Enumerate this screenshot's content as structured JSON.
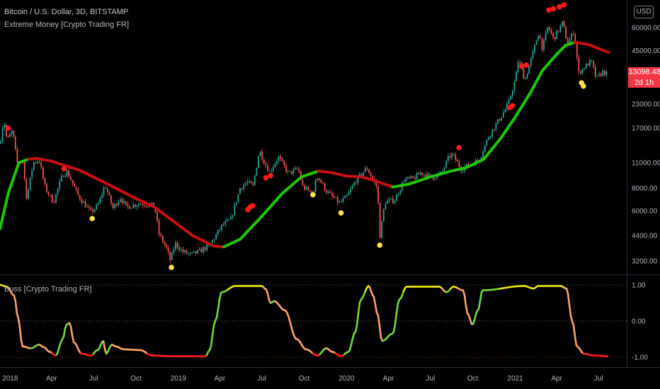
{
  "header": {
    "symbol_line": "Bitcoin / U.S. Dollar, 3D, BITSTAMP",
    "indicator_name": "Extreme Money [Crypto Trading FR]",
    "oscillator_name": "Buss [Crypto Trading FR]",
    "currency_badge": "USD"
  },
  "price_tag": {
    "price": "33098.48",
    "countdown": "2d 1h"
  },
  "colors": {
    "background": "#000000",
    "trend_up": "#1ec800",
    "trend_down": "#c80f14",
    "candle_up": "#26a69a",
    "candle_down": "#ef5350",
    "dot_top": "#ff1a1a",
    "dot_bottom": "#ffe14d",
    "osc_high": "#e6e600",
    "osc_mid_up": "#6fd83a",
    "osc_mid_down": "#ffa066",
    "osc_low": "#ff1a1a",
    "price_tag": "#f23645"
  },
  "chart_data": [
    {
      "type": "line",
      "title": "Bitcoin / U.S. Dollar, 3D, BITSTAMP",
      "scale": "log",
      "y_ticks": [
        "60000.00",
        "45000.00",
        "33000.00",
        "23000.00",
        "17000.00",
        "11000.00",
        "8000.00",
        "6000.00",
        "4400.00",
        "3200.00"
      ],
      "y_tick_values": [
        60000,
        45000,
        33000,
        23000,
        17000,
        11000,
        8000,
        6000,
        4400,
        3200
      ],
      "x_ticks": [
        "2018",
        "Apr",
        "Jul",
        "Oct",
        "2019",
        "Apr",
        "Jul",
        "Oct",
        "2020",
        "Apr",
        "Jul",
        "Oct",
        "2021",
        "Apr",
        "Jul"
      ],
      "x_range": [
        "2017-12-10",
        "2021-07-22"
      ],
      "ylim": [
        2700,
        85000
      ],
      "price_series": [
        [
          "2017-12-10",
          14000
        ],
        [
          "2017-12-18",
          19000
        ],
        [
          "2017-12-25",
          14500
        ],
        [
          "2018-01-06",
          16500
        ],
        [
          "2018-01-16",
          11000
        ],
        [
          "2018-01-28",
          11500
        ],
        [
          "2018-02-06",
          7000
        ],
        [
          "2018-02-20",
          11000
        ],
        [
          "2018-03-05",
          11400
        ],
        [
          "2018-03-18",
          8000
        ],
        [
          "2018-04-05",
          6700
        ],
        [
          "2018-04-25",
          9500
        ],
        [
          "2018-05-05",
          9800
        ],
        [
          "2018-05-28",
          7300
        ],
        [
          "2018-06-25",
          5900
        ],
        [
          "2018-07-10",
          6400
        ],
        [
          "2018-07-26",
          8300
        ],
        [
          "2018-08-12",
          6200
        ],
        [
          "2018-08-28",
          7100
        ],
        [
          "2018-09-10",
          6300
        ],
        [
          "2018-10-10",
          6600
        ],
        [
          "2018-11-10",
          6400
        ],
        [
          "2018-11-20",
          4500
        ],
        [
          "2018-12-05",
          3800
        ],
        [
          "2018-12-15",
          3200
        ],
        [
          "2018-12-25",
          4000
        ],
        [
          "2019-01-10",
          3600
        ],
        [
          "2019-01-28",
          3450
        ],
        [
          "2019-02-15",
          3600
        ],
        [
          "2019-03-10",
          3900
        ],
        [
          "2019-04-05",
          4950
        ],
        [
          "2019-04-25",
          5400
        ],
        [
          "2019-05-15",
          8000
        ],
        [
          "2019-05-30",
          8600
        ],
        [
          "2019-06-12",
          8200
        ],
        [
          "2019-06-26",
          12900
        ],
        [
          "2019-07-05",
          11300
        ],
        [
          "2019-07-18",
          9800
        ],
        [
          "2019-08-06",
          11800
        ],
        [
          "2019-08-28",
          9600
        ],
        [
          "2019-09-18",
          10200
        ],
        [
          "2019-09-28",
          8100
        ],
        [
          "2019-10-22",
          7400
        ],
        [
          "2019-10-27",
          9500
        ],
        [
          "2019-11-20",
          7600
        ],
        [
          "2019-12-17",
          6600
        ],
        [
          "2020-01-02",
          7200
        ],
        [
          "2020-01-20",
          8700
        ],
        [
          "2020-02-14",
          10300
        ],
        [
          "2020-03-08",
          8000
        ],
        [
          "2020-03-13",
          4300
        ],
        [
          "2020-03-24",
          6700
        ],
        [
          "2020-04-15",
          6900
        ],
        [
          "2020-05-05",
          8900
        ],
        [
          "2020-05-25",
          9000
        ],
        [
          "2020-06-10",
          9700
        ],
        [
          "2020-07-05",
          9100
        ],
        [
          "2020-07-25",
          9600
        ],
        [
          "2020-08-10",
          11800
        ],
        [
          "2020-08-18",
          12200
        ],
        [
          "2020-09-05",
          10200
        ],
        [
          "2020-09-25",
          10700
        ],
        [
          "2020-10-15",
          11400
        ],
        [
          "2020-11-05",
          15500
        ],
        [
          "2020-11-25",
          18500
        ],
        [
          "2020-12-17",
          23000
        ],
        [
          "2021-01-02",
          32000
        ],
        [
          "2021-01-08",
          40500
        ],
        [
          "2021-01-22",
          31000
        ],
        [
          "2021-02-10",
          45000
        ],
        [
          "2021-02-21",
          57000
        ],
        [
          "2021-03-01",
          46000
        ],
        [
          "2021-03-13",
          61000
        ],
        [
          "2021-03-25",
          52000
        ],
        [
          "2021-04-14",
          64000
        ],
        [
          "2021-04-25",
          48500
        ],
        [
          "2021-05-08",
          58000
        ],
        [
          "2021-05-19",
          34000
        ],
        [
          "2021-05-28",
          36000
        ],
        [
          "2021-06-15",
          39500
        ],
        [
          "2021-06-26",
          31500
        ],
        [
          "2021-07-10",
          34500
        ],
        [
          "2021-07-22",
          33098
        ]
      ],
      "trend_series": [
        [
          "2017-12-10",
          4800
        ],
        [
          "2017-12-28",
          7500
        ],
        [
          "2018-01-20",
          11000
        ],
        [
          "2018-02-10",
          11500
        ],
        [
          "2018-03-01",
          11600
        ],
        [
          "2018-04-01",
          11200
        ],
        [
          "2018-06-01",
          10000
        ],
        [
          "2018-08-01",
          8400
        ],
        [
          "2018-10-01",
          7000
        ],
        [
          "2018-11-10",
          6300
        ],
        [
          "2018-12-20",
          5300
        ],
        [
          "2019-02-01",
          4400
        ],
        [
          "2019-03-20",
          3850
        ],
        [
          "2019-04-10",
          3820
        ],
        [
          "2019-05-15",
          4200
        ],
        [
          "2019-07-01",
          5600
        ],
        [
          "2019-08-15",
          7500
        ],
        [
          "2019-09-25",
          9200
        ],
        [
          "2019-11-01",
          9900
        ],
        [
          "2019-12-01",
          9700
        ],
        [
          "2020-01-01",
          9300
        ],
        [
          "2020-02-01",
          9200
        ],
        [
          "2020-03-01",
          8800
        ],
        [
          "2020-04-10",
          8100
        ],
        [
          "2020-05-15",
          8400
        ],
        [
          "2020-07-01",
          9200
        ],
        [
          "2020-08-15",
          9900
        ],
        [
          "2020-09-15",
          10300
        ],
        [
          "2020-10-25",
          11500
        ],
        [
          "2020-12-01",
          15000
        ],
        [
          "2021-01-01",
          19500
        ],
        [
          "2021-02-01",
          26000
        ],
        [
          "2021-03-01",
          35000
        ],
        [
          "2021-04-01",
          43000
        ],
        [
          "2021-04-20",
          48000
        ],
        [
          "2021-05-10",
          50000
        ],
        [
          "2021-06-10",
          48500
        ],
        [
          "2021-07-22",
          44000
        ]
      ],
      "trend_down_ranges": [
        [
          "2018-02-14",
          "2019-04-05"
        ],
        [
          "2019-11-10",
          "2020-04-10"
        ],
        [
          "2021-05-01",
          "2021-07-22"
        ]
      ],
      "top_signals": [
        [
          "2017-12-28",
          17000
        ],
        [
          "2018-04-28",
          10200
        ],
        [
          "2019-06-01",
          6100
        ],
        [
          "2019-06-06",
          6300
        ],
        [
          "2019-06-11",
          6400
        ],
        [
          "2019-07-10",
          9100
        ],
        [
          "2019-07-20",
          9350
        ],
        [
          "2020-09-01",
          13300
        ],
        [
          "2020-12-20",
          22000
        ],
        [
          "2020-12-26",
          22500
        ],
        [
          "2021-01-15",
          37000
        ],
        [
          "2021-01-25",
          37500
        ],
        [
          "2021-03-15",
          75000
        ],
        [
          "2021-03-25",
          76000
        ],
        [
          "2021-04-07",
          78000
        ],
        [
          "2021-04-17",
          80000
        ]
      ],
      "bottom_signals": [
        [
          "2018-06-28",
          5450
        ],
        [
          "2018-12-17",
          2950
        ],
        [
          "2019-10-20",
          7350
        ],
        [
          "2019-12-20",
          5850
        ],
        [
          "2020-03-13",
          3900
        ],
        [
          "2021-05-25",
          30000
        ],
        [
          "2021-05-29",
          28800
        ]
      ]
    },
    {
      "type": "line",
      "title": "Buss [Crypto Trading FR]",
      "ylim": [
        -1.25,
        1.25
      ],
      "y_ticks": [
        "1.00",
        "0.00",
        "-1.00"
      ],
      "y_tick_values": [
        1,
        0,
        -1
      ],
      "reference_lines": [
        1,
        0,
        -1
      ],
      "series": [
        [
          "2017-12-10",
          1.0
        ],
        [
          "2017-12-25",
          0.95
        ],
        [
          "2018-01-10",
          0.7
        ],
        [
          "2018-01-18",
          0.1
        ],
        [
          "2018-01-28",
          -0.7
        ],
        [
          "2018-02-15",
          -0.75
        ],
        [
          "2018-03-05",
          -0.65
        ],
        [
          "2018-03-15",
          -0.72
        ],
        [
          "2018-03-28",
          -0.85
        ],
        [
          "2018-04-10",
          -0.95
        ],
        [
          "2018-04-25",
          -0.5
        ],
        [
          "2018-05-03",
          -0.1
        ],
        [
          "2018-05-10",
          -0.05
        ],
        [
          "2018-05-20",
          -0.6
        ],
        [
          "2018-06-05",
          -0.9
        ],
        [
          "2018-06-25",
          -0.95
        ],
        [
          "2018-07-10",
          -0.8
        ],
        [
          "2018-07-22",
          -0.55
        ],
        [
          "2018-07-28",
          -0.9
        ],
        [
          "2018-08-10",
          -0.65
        ],
        [
          "2018-08-18",
          -0.7
        ],
        [
          "2018-09-05",
          -0.78
        ],
        [
          "2018-10-10",
          -0.8
        ],
        [
          "2018-11-05",
          -0.95
        ],
        [
          "2018-12-20",
          -0.97
        ],
        [
          "2019-03-01",
          -0.97
        ],
        [
          "2019-03-10",
          -0.8
        ],
        [
          "2019-03-22",
          0.0
        ],
        [
          "2019-04-05",
          0.8
        ],
        [
          "2019-05-05",
          0.97
        ],
        [
          "2019-07-01",
          0.97
        ],
        [
          "2019-07-10",
          0.88
        ],
        [
          "2019-07-20",
          0.5
        ],
        [
          "2019-07-28",
          0.55
        ],
        [
          "2019-08-20",
          0.3
        ],
        [
          "2019-09-15",
          -0.5
        ],
        [
          "2019-10-05",
          -0.78
        ],
        [
          "2019-10-30",
          -0.95
        ],
        [
          "2019-11-18",
          -0.75
        ],
        [
          "2019-12-01",
          -0.85
        ],
        [
          "2019-12-20",
          -0.97
        ],
        [
          "2020-01-05",
          -0.85
        ],
        [
          "2020-01-20",
          -0.3
        ],
        [
          "2020-02-01",
          0.6
        ],
        [
          "2020-02-18",
          0.97
        ],
        [
          "2020-02-28",
          0.7
        ],
        [
          "2020-03-08",
          0.2
        ],
        [
          "2020-03-18",
          -0.55
        ],
        [
          "2020-04-10",
          -0.35
        ],
        [
          "2020-04-25",
          0.6
        ],
        [
          "2020-05-10",
          0.95
        ],
        [
          "2020-07-20",
          0.95
        ],
        [
          "2020-08-05",
          0.8
        ],
        [
          "2020-08-20",
          0.95
        ],
        [
          "2020-09-10",
          0.85
        ],
        [
          "2020-09-20",
          0.2
        ],
        [
          "2020-09-30",
          -0.1
        ],
        [
          "2020-10-12",
          0.3
        ],
        [
          "2020-10-22",
          0.85
        ],
        [
          "2021-01-20",
          0.97
        ],
        [
          "2021-02-10",
          0.9
        ],
        [
          "2021-02-20",
          0.97
        ],
        [
          "2021-04-10",
          0.97
        ],
        [
          "2021-04-22",
          0.9
        ],
        [
          "2021-05-05",
          0.0
        ],
        [
          "2021-05-15",
          -0.7
        ],
        [
          "2021-05-30",
          -0.9
        ],
        [
          "2021-06-20",
          -0.95
        ],
        [
          "2021-07-22",
          -0.97
        ]
      ]
    }
  ]
}
